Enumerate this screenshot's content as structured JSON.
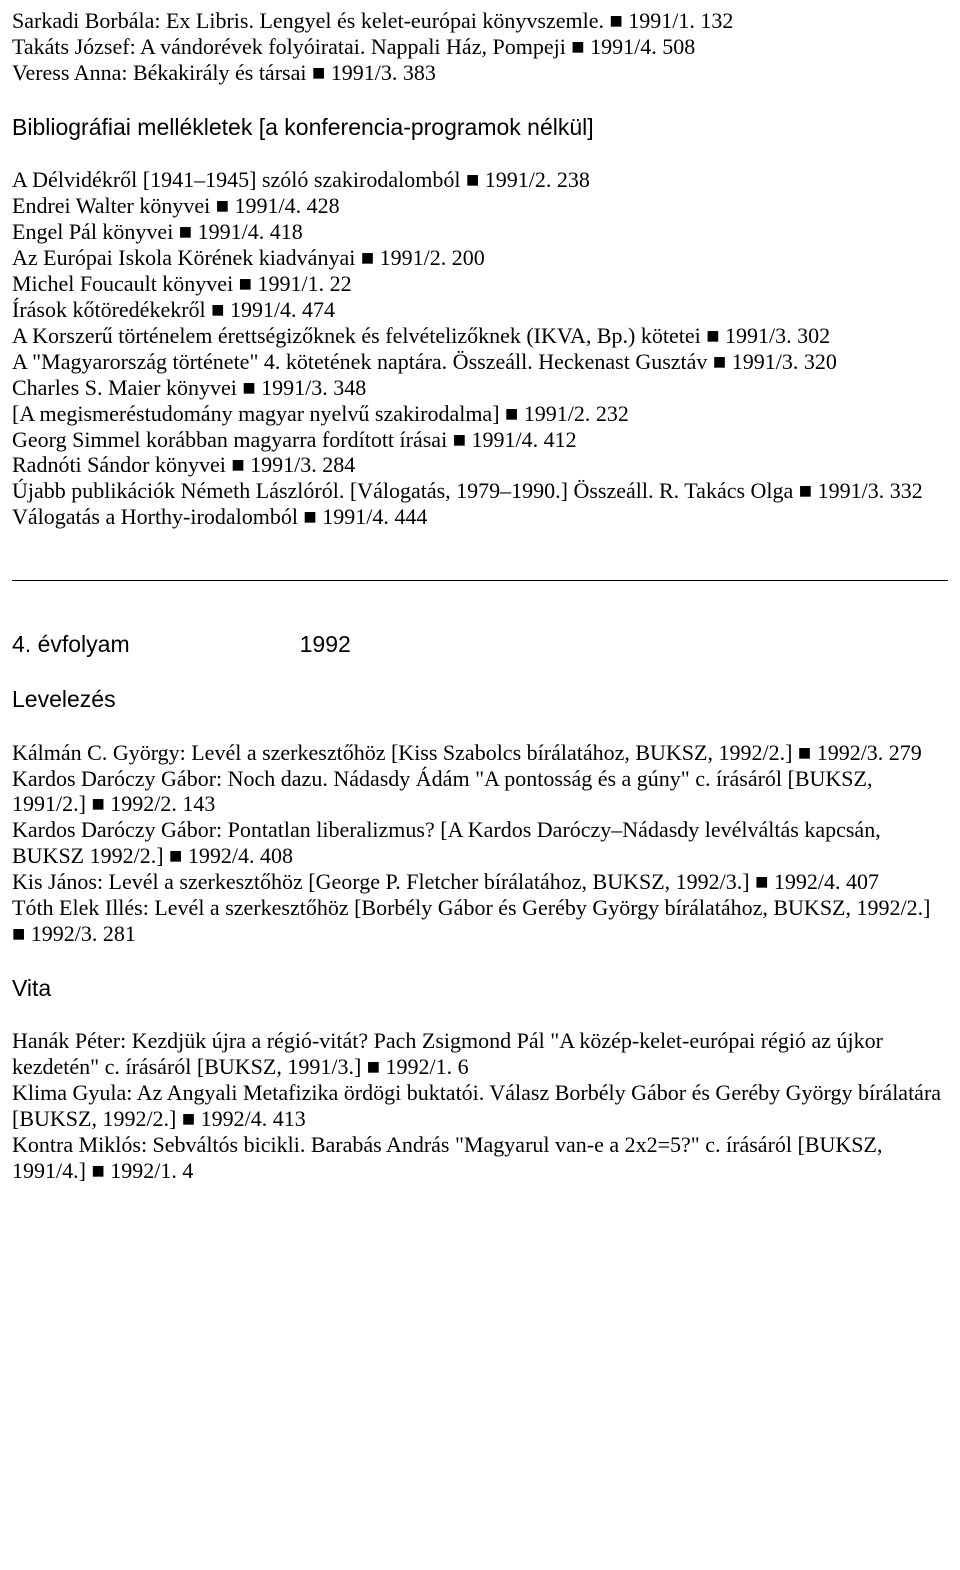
{
  "intro_lines": [
    "Sarkadi Borbála: Ex Libris. Lengyel és kelet-európai könyvszemle. ■ 1991/1. 132",
    "Takáts József: A vándorévek folyóiratai. Nappali Ház, Pompeji ■ 1991/4. 508",
    "Veress Anna: Békakirály és társai ■ 1991/3. 383"
  ],
  "section1_heading": "Bibliográfiai mellékletek [a konferencia-programok nélkül]",
  "section1_lines": [
    "A Délvidékről [1941–1945] szóló szakirodalomból ■ 1991/2. 238",
    "Endrei Walter könyvei ■ 1991/4. 428",
    "Engel Pál könyvei ■ 1991/4. 418",
    "Az Európai Iskola Körének kiadványai ■ 1991/2. 200",
    "Michel Foucault könyvei ■ 1991/1. 22",
    "Írások kőtöredékekről ■ 1991/4. 474",
    "A Korszerű történelem érettségizőknek és felvételizőknek (IKVA, Bp.) kötetei ■ 1991/3. 302",
    "A \"Magyarország története\" 4. kötetének naptára. Összeáll. Heckenast Gusztáv ■ 1991/3. 320",
    "Charles S. Maier könyvei ■ 1991/3. 348",
    "[A megismeréstudomány magyar nyelvű szakirodalma] ■ 1991/2. 232",
    "Georg Simmel korábban magyarra fordított írásai ■ 1991/4. 412",
    "Radnóti Sándor könyvei ■ 1991/3. 284",
    "Újabb publikációk Németh Lászlóról. [Válogatás, 1979–1990.] Összeáll. R. Takács Olga ■ 1991/3. 332",
    "Válogatás a Horthy-irodalomból ■ 1991/4. 444"
  ],
  "volume_label": "4. évfolyam",
  "volume_year": "1992",
  "section2_heading": "Levelezés",
  "section2_lines": [
    "Kálmán C. György: Levél a szerkesztőhöz [Kiss Szabolcs bírálatához, BUKSZ, 1992/2.] ■ 1992/3. 279",
    "Kardos Daróczy Gábor: Noch dazu. Nádasdy Ádám \"A pontosság és a gúny\" c. írásáról [BUKSZ, 1991/2.] ■ 1992/2. 143",
    "Kardos Daróczy Gábor: Pontatlan liberalizmus? [A Kardos Daróczy–Nádasdy levélváltás kapcsán, BUKSZ 1992/2.] ■ 1992/4. 408",
    "Kis János: Levél a szerkesztőhöz [George P. Fletcher bírálatához, BUKSZ, 1992/3.] ■ 1992/4. 407",
    "Tóth Elek Illés: Levél a szerkesztőhöz [Borbély Gábor és Geréby György bírálatához, BUKSZ, 1992/2.] ■ 1992/3. 281"
  ],
  "section3_heading": "Vita",
  "section3_lines": [
    "Hanák Péter: Kezdjük újra a régió-vitát? Pach Zsigmond Pál \"A közép-kelet-európai régió az újkor kezdetén\" c. írásáról [BUKSZ, 1991/3.] ■ 1992/1. 6",
    "Klima Gyula: Az Angyali Metafizika ördögi buktatói. Válasz Borbély Gábor és Geréby György bírálatára [BUKSZ, 1992/2.] ■ 1992/4. 413",
    "Kontra Miklós: Sebváltós bicikli. Barabás András \"Magyarul van-e a 2x2=5?\" c. írásáról [BUKSZ, 1991/4.] ■ 1992/1. 4"
  ]
}
